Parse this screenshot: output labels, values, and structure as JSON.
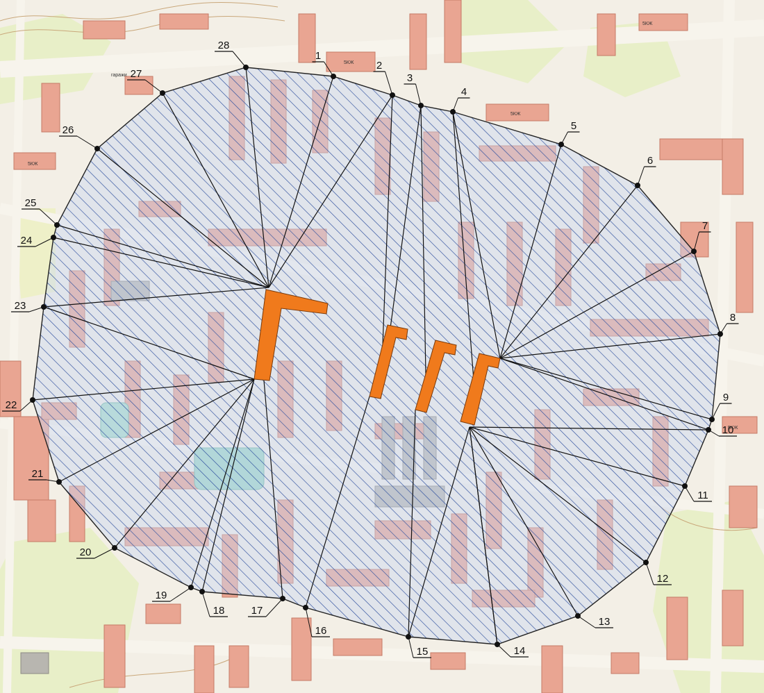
{
  "map": {
    "building_code": "5КЖ",
    "garage_label": "гаражи",
    "colors": {
      "background": "#f3efe6",
      "building": "#e9a592",
      "building_edge": "#c57a66",
      "greenery": "#e8efc8",
      "water": "#9ed7c5",
      "hatch": "#2e4f9e",
      "zone_fill": "#c9d6f2",
      "source": "#f07a1c",
      "ray": "#111111"
    },
    "points": [
      {
        "label": "1"
      },
      {
        "label": "2"
      },
      {
        "label": "3"
      },
      {
        "label": "4"
      },
      {
        "label": "5"
      },
      {
        "label": "6"
      },
      {
        "label": "7"
      },
      {
        "label": "8"
      },
      {
        "label": "9"
      },
      {
        "label": "10"
      },
      {
        "label": "11"
      },
      {
        "label": "12"
      },
      {
        "label": "13"
      },
      {
        "label": "14"
      },
      {
        "label": "15"
      },
      {
        "label": "16"
      },
      {
        "label": "17"
      },
      {
        "label": "18"
      },
      {
        "label": "19"
      },
      {
        "label": "20"
      },
      {
        "label": "21"
      },
      {
        "label": "22"
      },
      {
        "label": "23"
      },
      {
        "label": "24"
      },
      {
        "label": "25"
      },
      {
        "label": "26"
      },
      {
        "label": "27"
      },
      {
        "label": "28"
      }
    ]
  }
}
